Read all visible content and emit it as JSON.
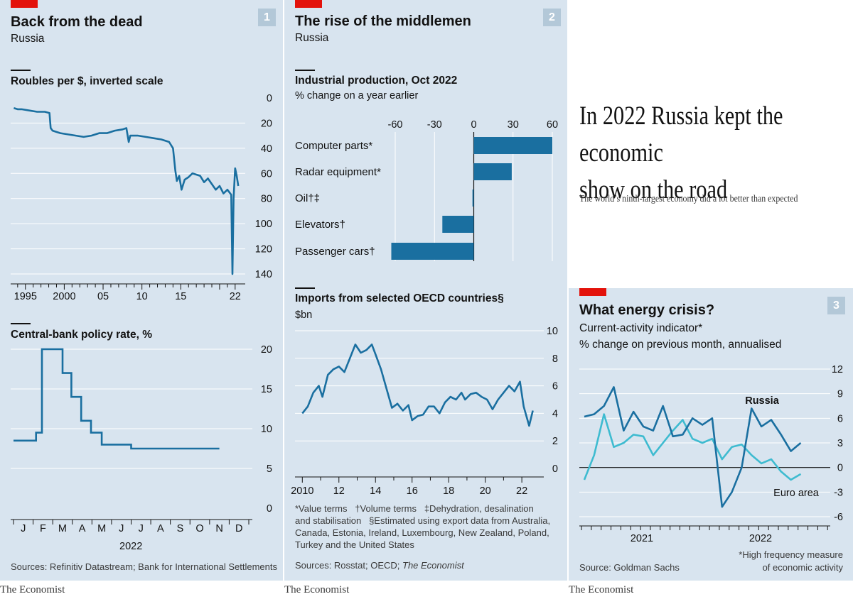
{
  "panel1": {
    "number": "1",
    "title": "Back from the dead",
    "subtitle": "Russia",
    "source": "Sources: Refinitiv Datastream; Bank for International Settlements",
    "brand": "The Economist"
  },
  "panel2": {
    "number": "2",
    "title": "The rise of the middlemen",
    "subtitle": "Russia",
    "footnote1": "*Value terms   †Volume terms   ‡Dehydration, desalination",
    "footnote2": "and stabilisation   §Estimated using export data from Australia,",
    "footnote3": "Canada, Estonia, Ireland, Luxembourg, New Zealand, Poland,",
    "footnote4": "Turkey and the United States",
    "source_prefix": "Sources: Rosstat; OECD; ",
    "source_italic": "The Economist",
    "brand": "The Economist"
  },
  "panel3": {
    "number": "3",
    "title": "What energy crisis?",
    "subtitle1": "Current-activity indicator*",
    "subtitle2": "% change on previous month, annualised",
    "source": "Source: Goldman Sachs",
    "footnote1": "*High frequency measure",
    "footnote2": "of economic activity",
    "brand": "The Economist"
  },
  "headline": {
    "line1": "In 2022 Russia kept the economic",
    "line2": "show on the road",
    "standfirst": "The world’s ninth-largest economy did a lot better than expected"
  },
  "colors": {
    "dark_blue": "#1a6fa0",
    "light_blue": "#3ebbd0",
    "panel_bg": "#d8e4ef",
    "red": "#e3120b"
  },
  "chart_data": [
    {
      "id": "roubles",
      "type": "line",
      "title": "Roubles per $, inverted scale",
      "ylim": [
        0,
        140
      ],
      "inverted": true,
      "yticks": [
        "0",
        "20",
        "40",
        "60",
        "80",
        "100",
        "120",
        "140"
      ],
      "xticks": [
        "1995",
        "2000",
        "05",
        "10",
        "15",
        "22"
      ],
      "x": [
        1994.0,
        1994.5,
        1995.0,
        1996.0,
        1997.0,
        1998.0,
        1998.6,
        1998.75,
        1999.0,
        2000.0,
        2001.0,
        2002.0,
        2003.0,
        2004.0,
        2005.0,
        2006.0,
        2007.0,
        2008.0,
        2008.5,
        2008.8,
        2009.0,
        2010.0,
        2011.0,
        2012.0,
        2013.0,
        2014.0,
        2014.5,
        2014.8,
        2015.0,
        2015.3,
        2015.6,
        2016.0,
        2016.5,
        2017.0,
        2018.0,
        2018.5,
        2019.0,
        2020.0,
        2020.5,
        2021.0,
        2021.5,
        2022.0,
        2022.15,
        2022.3,
        2022.5,
        2022.7,
        2022.9
      ],
      "values": [
        8,
        9,
        9,
        10,
        11,
        11,
        12,
        24,
        26,
        28,
        29,
        30,
        31,
        30,
        28,
        28,
        26,
        25,
        24,
        35,
        30,
        30,
        31,
        32,
        33,
        35,
        40,
        58,
        66,
        62,
        73,
        65,
        63,
        60,
        62,
        67,
        64,
        73,
        70,
        76,
        73,
        77,
        140,
        80,
        56,
        62,
        70
      ]
    },
    {
      "id": "policy-rate",
      "type": "line",
      "title": "Central-bank policy rate, %",
      "ylim": [
        0,
        20
      ],
      "yticks": [
        "0",
        "5",
        "10",
        "15",
        "20"
      ],
      "xticks": [
        "J",
        "F",
        "M",
        "A",
        "M",
        "J",
        "J",
        "A",
        "S",
        "O",
        "N",
        "D"
      ],
      "xlabel": "2022",
      "x": [
        0.0,
        1.15,
        1.15,
        1.45,
        1.45,
        2.5,
        2.5,
        2.95,
        2.95,
        3.45,
        3.45,
        3.95,
        3.95,
        4.5,
        4.5,
        6.0,
        6.0,
        7.5,
        7.5,
        10.5
      ],
      "values": [
        8.5,
        8.5,
        9.5,
        9.5,
        20,
        20,
        17,
        17,
        14,
        14,
        11,
        11,
        9.5,
        9.5,
        8,
        8,
        7.5,
        7.5,
        7.5,
        7.5
      ]
    },
    {
      "id": "industrial-production",
      "type": "bar",
      "title": "Industrial production, Oct 2022",
      "subtitle": "% change on a year earlier",
      "categories": [
        "Computer parts*",
        "Radar equipment*",
        "Oil†‡",
        "Elevators†",
        "Passenger cars†"
      ],
      "values": [
        60,
        29,
        -1,
        -24,
        -63
      ],
      "xlim": [
        -60,
        60
      ],
      "xticks": [
        "-60",
        "-30",
        "0",
        "30",
        "60"
      ]
    },
    {
      "id": "imports",
      "type": "line",
      "title": "Imports from selected OECD countries§",
      "ylabel": "$bn",
      "ylim": [
        0,
        10
      ],
      "yticks": [
        "0",
        "2",
        "4",
        "6",
        "8",
        "10"
      ],
      "xticks": [
        "2010",
        "12",
        "14",
        "16",
        "18",
        "20",
        "22"
      ],
      "x": [
        2010.0,
        2010.3,
        2010.6,
        2010.9,
        2011.1,
        2011.4,
        2011.7,
        2012.0,
        2012.3,
        2012.6,
        2012.9,
        2013.2,
        2013.5,
        2013.8,
        2014.0,
        2014.3,
        2014.6,
        2014.9,
        2015.2,
        2015.5,
        2015.8,
        2016.0,
        2016.3,
        2016.6,
        2016.9,
        2017.2,
        2017.5,
        2017.8,
        2018.1,
        2018.4,
        2018.7,
        2018.9,
        2019.2,
        2019.5,
        2019.8,
        2020.1,
        2020.4,
        2020.7,
        2021.0,
        2021.3,
        2021.6,
        2021.9,
        2022.1,
        2022.4,
        2022.6
      ],
      "values": [
        4.0,
        4.5,
        5.5,
        6.0,
        5.2,
        6.8,
        7.2,
        7.4,
        7.0,
        8.0,
        9.0,
        8.4,
        8.6,
        9.0,
        8.3,
        7.2,
        5.8,
        4.4,
        4.7,
        4.2,
        4.6,
        3.5,
        3.8,
        3.9,
        4.5,
        4.5,
        4.0,
        4.8,
        5.2,
        5.0,
        5.5,
        5.0,
        5.4,
        5.5,
        5.2,
        5.0,
        4.3,
        5.0,
        5.5,
        6.0,
        5.6,
        6.3,
        4.5,
        3.1,
        4.2
      ]
    },
    {
      "id": "current-activity",
      "type": "line",
      "title": "What energy crisis?",
      "ylim": [
        -6,
        12
      ],
      "yticks": [
        "12",
        "9",
        "6",
        "3",
        "0",
        "-3",
        "-6"
      ],
      "xticks": [
        "2021",
        "2022"
      ],
      "series": [
        {
          "name": "Russia",
          "x": [
            0,
            1,
            2,
            3,
            4,
            5,
            6,
            7,
            8,
            9,
            10,
            11,
            12,
            13,
            14,
            15,
            16,
            17,
            18,
            19,
            20,
            21,
            22,
            23,
            24,
            25
          ],
          "values": [
            6.2,
            6.5,
            7.5,
            9.8,
            4.5,
            6.8,
            5.0,
            4.5,
            7.5,
            3.8,
            4.0,
            6.0,
            5.2,
            6.0,
            -4.8,
            -3.0,
            0.0,
            7.2,
            5.0,
            5.8,
            4.0,
            2.0,
            3.0,
            null,
            null,
            null
          ]
        },
        {
          "name": "Euro area",
          "x": [
            0,
            1,
            2,
            3,
            4,
            5,
            6,
            7,
            8,
            9,
            10,
            11,
            12,
            13,
            14,
            15,
            16,
            17,
            18,
            19,
            20,
            21,
            22
          ],
          "values": [
            -1.5,
            1.5,
            6.5,
            2.5,
            3.0,
            4.0,
            3.8,
            1.5,
            3.0,
            4.5,
            5.8,
            3.5,
            3.0,
            3.5,
            1.0,
            2.5,
            2.8,
            1.5,
            0.5,
            1.0,
            -0.5,
            -1.5,
            -0.8
          ]
        }
      ]
    }
  ]
}
